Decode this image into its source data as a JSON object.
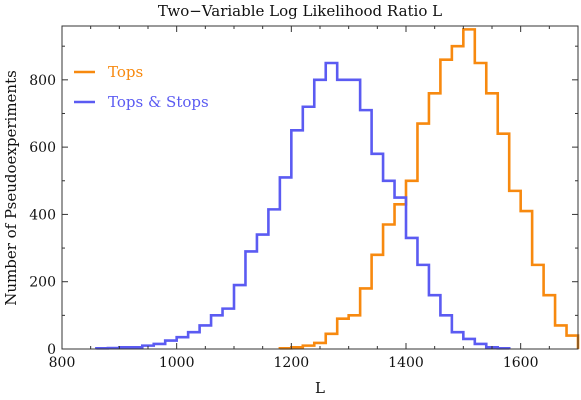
{
  "chart_data": {
    "type": "histogram",
    "title": "Two−Variable Log Likelihood Ratio L",
    "xlabel": "L",
    "ylabel": "Number of Pseudoexperiments",
    "xlim": [
      800,
      1700
    ],
    "ylim": [
      0,
      960
    ],
    "xticks": [
      800,
      1000,
      1200,
      1400,
      1600
    ],
    "yticks": [
      0,
      200,
      400,
      600,
      800
    ],
    "grid": false,
    "legend_position": "top-left",
    "series": [
      {
        "name": "Tops",
        "color": "#f7890f",
        "bin_edges": [
          1180,
          1200,
          1220,
          1240,
          1260,
          1280,
          1300,
          1320,
          1340,
          1360,
          1380,
          1400,
          1420,
          1440,
          1460,
          1480,
          1500,
          1520,
          1540,
          1560,
          1580,
          1600,
          1620,
          1640,
          1660,
          1680,
          1700
        ],
        "values": [
          2,
          5,
          10,
          18,
          45,
          90,
          100,
          180,
          280,
          370,
          430,
          500,
          670,
          760,
          860,
          900,
          950,
          850,
          760,
          640,
          470,
          410,
          250,
          160,
          70,
          40
        ]
      },
      {
        "name": "Tops & Stops",
        "color": "#5b5bf2",
        "bin_edges": [
          860,
          880,
          900,
          920,
          940,
          960,
          980,
          1000,
          1020,
          1040,
          1060,
          1080,
          1100,
          1120,
          1140,
          1160,
          1180,
          1200,
          1220,
          1240,
          1260,
          1280,
          1300,
          1320,
          1340,
          1360,
          1380,
          1400,
          1420,
          1440,
          1460,
          1480,
          1500,
          1520,
          1540,
          1560,
          1580
        ],
        "values": [
          2,
          3,
          5,
          5,
          10,
          15,
          25,
          35,
          50,
          70,
          100,
          120,
          190,
          290,
          340,
          415,
          510,
          650,
          720,
          800,
          850,
          800,
          800,
          710,
          580,
          500,
          450,
          330,
          250,
          160,
          100,
          50,
          30,
          15,
          5,
          2
        ]
      }
    ]
  }
}
